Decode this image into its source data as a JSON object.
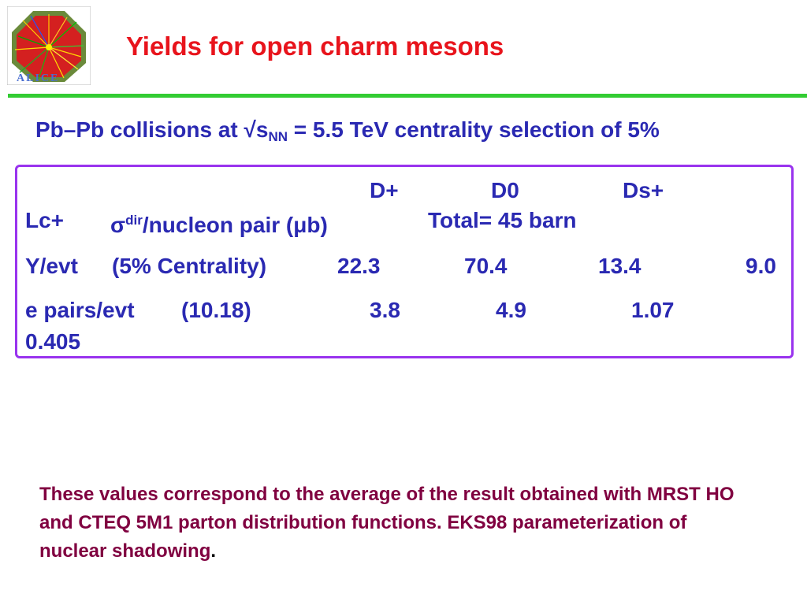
{
  "header": {
    "logo_text": "ALICE",
    "title": "Yields for open charm mesons"
  },
  "subtitle": {
    "prefix": "Pb–Pb collisions at √s",
    "sub": "NN",
    "suffix": " = 5.5 TeV centrality selection of 5%"
  },
  "table": {
    "col_headers": [
      "D+",
      "D0",
      "Ds+"
    ],
    "row1": {
      "first": "Lc+",
      "sigma": "σ",
      "sup": "dir",
      "label": "/nucleon pair (μb)",
      "total": "Total= 45 barn"
    },
    "row2": {
      "label": "Y/evt",
      "detail": "(5% Centrality)",
      "values": [
        "22.3",
        "70.4",
        "13.4",
        "9.0"
      ]
    },
    "row3": {
      "label": "e pairs/evt",
      "detail": "(10.18)",
      "values": [
        "3.8",
        "4.9",
        "1.07",
        "0.405"
      ]
    }
  },
  "note": {
    "text": "These values correspond to the average of the result obtained with MRST HO and CTEQ 5M1 parton distribution functions.   EKS98 parameterization of nuclear shadowing",
    "period": "."
  },
  "colors": {
    "title": "#e8141c",
    "body_text": "#2a29b2",
    "rule": "#33cc33",
    "box_border": "#9933ee",
    "note_text": "#800040"
  }
}
